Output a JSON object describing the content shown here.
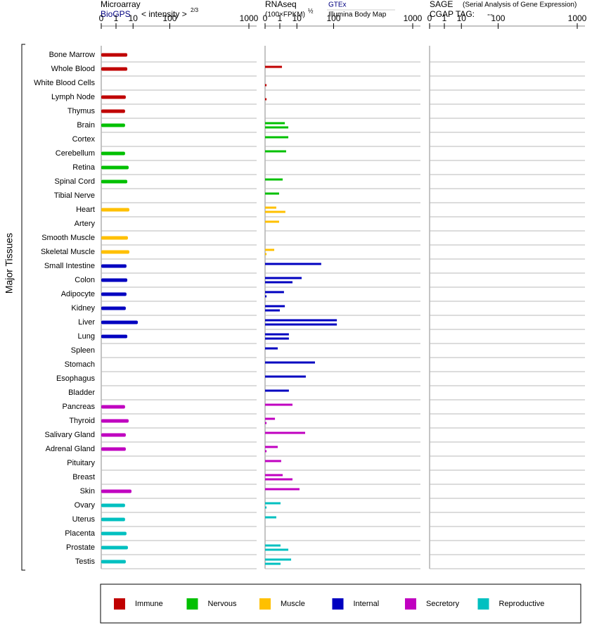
{
  "chart_data": [
    {
      "type": "bar",
      "title": "Microarray",
      "subtitle": "BioGPS",
      "xlabel": "< intensity >",
      "xlabel_exponent": "2/3",
      "ylabel": "Major Tissues",
      "categories": [
        "Bone Marrow",
        "Whole Blood",
        "White Blood Cells",
        "Lymph Node",
        "Thymus",
        "Brain",
        "Cortex",
        "Cerebellum",
        "Retina",
        "Spinal Cord",
        "Tibial Nerve",
        "Heart",
        "Artery",
        "Smooth Muscle",
        "Skeletal Muscle",
        "Small Intestine",
        "Colon",
        "Adipocyte",
        "Kidney",
        "Liver",
        "Lung",
        "Spleen",
        "Stomach",
        "Esophagus",
        "Bladder",
        "Pancreas",
        "Thyroid",
        "Salivary Gland",
        "Adrenal Gland",
        "Pituitary",
        "Breast",
        "Skin",
        "Ovary",
        "Uterus",
        "Placenta",
        "Prostate",
        "Testis"
      ],
      "category_group": [
        0,
        0,
        0,
        0,
        0,
        1,
        1,
        1,
        1,
        1,
        1,
        2,
        2,
        2,
        2,
        3,
        3,
        3,
        3,
        3,
        3,
        3,
        3,
        3,
        3,
        4,
        4,
        4,
        4,
        4,
        4,
        4,
        5,
        5,
        5,
        5,
        5
      ],
      "groups": [
        {
          "name": "Immune",
          "color": "#c00000"
        },
        {
          "name": "Nervous",
          "color": "#00c000"
        },
        {
          "name": "Muscle",
          "color": "#ffc000"
        },
        {
          "name": "Internal",
          "color": "#0000c0"
        },
        {
          "name": "Secretory",
          "color": "#c000c0"
        },
        {
          "name": "Reproductive",
          "color": "#00c0c0"
        }
      ],
      "values": [
        5.5,
        5.5,
        null,
        4.6,
        4.2,
        4.2,
        null,
        4.2,
        6.4,
        5.5,
        null,
        6.9,
        null,
        5.9,
        6.9,
        5.0,
        5.5,
        5.0,
        4.6,
        15.2,
        5.5,
        null,
        null,
        null,
        null,
        4.2,
        6.4,
        4.6,
        4.6,
        null,
        null,
        8.6,
        4.2,
        4.2,
        5.0,
        5.9,
        4.6
      ],
      "xlim": [
        0,
        1000
      ],
      "xticks": [
        0,
        1,
        10,
        100,
        1000
      ]
    },
    {
      "type": "bar",
      "title": "RNAseq",
      "xlabel": "(100×FPKM)",
      "xlabel_exponent": "½",
      "series": [
        {
          "name": "GTEx",
          "values": [
            null,
            1.5,
            null,
            null,
            null,
            2.4,
            3.9,
            2.9,
            null,
            1.7,
            0.86,
            0.44,
            0.86,
            null,
            0.24,
            55,
            15.2,
            2.1,
            2.4,
            115,
            4.2,
            0.63,
            38.6,
            21,
            4.2,
            6.4,
            0.3,
            20,
            0.63,
            1.3,
            1.7,
            12.7,
            1.15,
            0.44,
            null,
            1.15,
            5.5
          ]
        },
        {
          "name": "Illumina Body Map",
          "values": [
            null,
            null,
            0.001,
            0.001,
            null,
            3.9,
            null,
            null,
            null,
            null,
            null,
            2.6,
            null,
            null,
            0.001,
            null,
            6.4,
            0.001,
            1.0,
            115,
            4.2,
            null,
            null,
            null,
            null,
            null,
            0.001,
            null,
            0.001,
            null,
            6.4,
            null,
            0.001,
            null,
            null,
            3.9,
            1.15
          ]
        }
      ],
      "xlim": [
        0,
        1000
      ],
      "xticks": [
        0,
        1,
        10,
        100,
        1000
      ]
    },
    {
      "type": "bar",
      "title": "SAGE",
      "subtitle": "(Serial Analysis of Gene Expression)",
      "tag_label": "CGAP TAG:",
      "tag_value": "--",
      "xlim": [
        0,
        1000
      ],
      "xticks": [
        0,
        1,
        10,
        100,
        1000
      ]
    }
  ]
}
